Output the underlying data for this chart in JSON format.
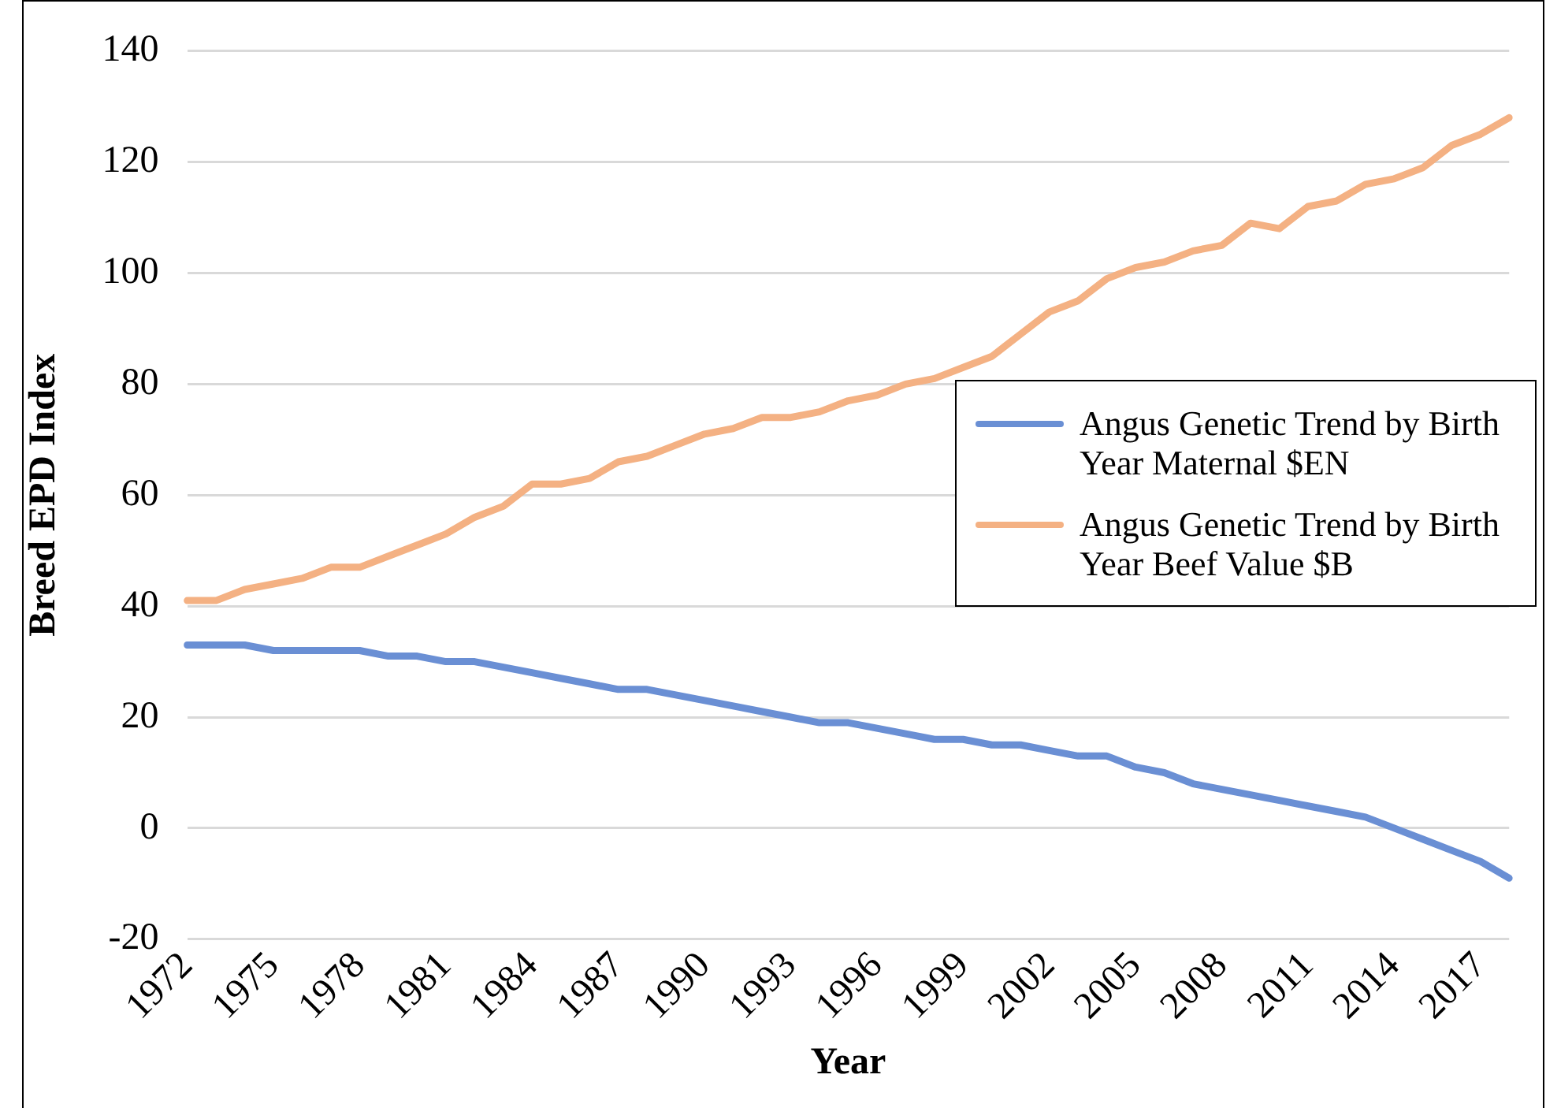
{
  "chart_data": {
    "type": "line",
    "xlabel": "Year",
    "ylabel": "Breed EPD Index",
    "categories": [
      "1972",
      null,
      null,
      "1975",
      null,
      null,
      "1978",
      null,
      null,
      "1981",
      null,
      null,
      "1984",
      null,
      null,
      "1987",
      null,
      null,
      "1990",
      null,
      null,
      "1993",
      null,
      null,
      "1996",
      null,
      null,
      "1999",
      null,
      null,
      "2002",
      null,
      null,
      "2005",
      null,
      null,
      "2008",
      null,
      null,
      "2011",
      null,
      null,
      "2014",
      null,
      null,
      "2017",
      null
    ],
    "series": [
      {
        "name": "Angus Genetic Trend by Birth Year Maternal $EN",
        "color": "#6a8fd4",
        "values": [
          33,
          33,
          33,
          32,
          32,
          32,
          32,
          31,
          31,
          30,
          30,
          29,
          28,
          27,
          26,
          25,
          25,
          24,
          23,
          22,
          21,
          20,
          19,
          19,
          18,
          17,
          16,
          16,
          15,
          15,
          14,
          13,
          13,
          11,
          10,
          8,
          7,
          6,
          5,
          4,
          3,
          2,
          0,
          -2,
          -4,
          -6,
          -9
        ]
      },
      {
        "name": "Angus Genetic Trend by Birth Year Beef Value $B",
        "color": "#f4b183",
        "values": [
          41,
          41,
          43,
          44,
          45,
          47,
          47,
          49,
          51,
          53,
          56,
          58,
          62,
          62,
          63,
          66,
          67,
          69,
          71,
          72,
          74,
          74,
          75,
          77,
          78,
          80,
          81,
          83,
          85,
          89,
          93,
          95,
          99,
          101,
          102,
          104,
          105,
          109,
          108,
          112,
          113,
          116,
          117,
          119,
          123,
          125,
          128
        ]
      }
    ],
    "ylim": [
      -20,
      140
    ],
    "yticks": [
      -20,
      0,
      20,
      40,
      60,
      80,
      100,
      120,
      140
    ],
    "grid": "y",
    "legend": "right",
    "marker": "none",
    "line_style": "solid"
  }
}
